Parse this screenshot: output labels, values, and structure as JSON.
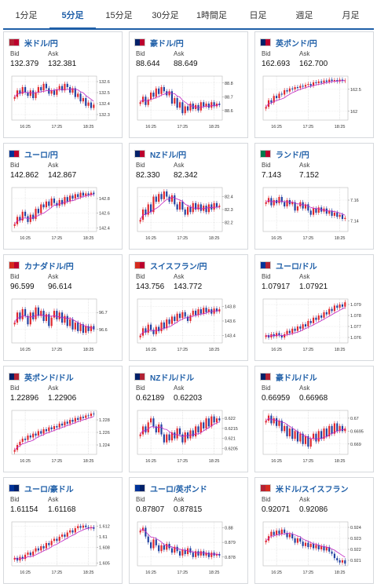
{
  "tabs": [
    {
      "label": "1分足",
      "active": false
    },
    {
      "label": "5分足",
      "active": true
    },
    {
      "label": "15分足",
      "active": false
    },
    {
      "label": "30分足",
      "active": false
    },
    {
      "label": "1時間足",
      "active": false
    },
    {
      "label": "日足",
      "active": false
    },
    {
      "label": "週足",
      "active": false
    },
    {
      "label": "月足",
      "active": false
    }
  ],
  "bid_label": "Bid",
  "ask_label": "Ask",
  "colors": {
    "up": "#e0262b",
    "down": "#1f3fa0",
    "ma": "#c026c4",
    "link": "#1f5fa8"
  },
  "cards": [
    {
      "pair": "米ドル/円",
      "bid": "132.379",
      "ask": "132.381",
      "flag": "us-jp-flag",
      "flag_colors": [
        "#b22234",
        "#bc002d"
      ],
      "chart_data": {
        "type": "candlestick",
        "x_ticks": [
          "16:25",
          "17:25",
          "18:25"
        ],
        "y_ticks": [
          "132.6",
          "132.5",
          "132.4",
          "132.3"
        ],
        "y_min": 132.25,
        "y_max": 132.65,
        "closes": [
          132.46,
          132.52,
          132.49,
          132.55,
          132.5,
          132.47,
          132.52,
          132.45,
          132.5,
          132.55,
          132.52,
          132.58,
          132.54,
          132.49,
          132.52,
          132.48,
          132.53,
          132.56,
          132.52,
          132.58,
          132.55,
          132.5,
          132.54,
          132.46,
          132.49,
          132.42,
          132.45,
          132.38,
          132.41,
          132.36,
          132.39
        ]
      }
    },
    {
      "pair": "豪ドル/円",
      "bid": "88.644",
      "ask": "88.649",
      "flag": "au-jp-flag",
      "flag_colors": [
        "#012169",
        "#bc002d"
      ],
      "chart_data": {
        "type": "candlestick",
        "x_ticks": [
          "16:25",
          "17:25",
          "18:25"
        ],
        "y_ticks": [
          "88.8",
          "88.7",
          "88.6"
        ],
        "y_min": 88.53,
        "y_max": 88.85,
        "closes": [
          88.66,
          88.7,
          88.64,
          88.68,
          88.73,
          88.7,
          88.76,
          88.72,
          88.77,
          88.74,
          88.71,
          88.74,
          88.65,
          88.69,
          88.62,
          88.66,
          88.58,
          88.63,
          88.6,
          88.65,
          88.61,
          88.64,
          88.6,
          88.66,
          88.63,
          88.65,
          88.62,
          88.66,
          88.63,
          88.65,
          88.64
        ]
      }
    },
    {
      "pair": "英ポンド/円",
      "bid": "162.693",
      "ask": "162.700",
      "flag": "gb-jp-flag",
      "flag_colors": [
        "#012169",
        "#bc002d"
      ],
      "chart_data": {
        "type": "candlestick",
        "x_ticks": [
          "16:25",
          "17:25",
          "18:25"
        ],
        "y_ticks": [
          "162.5",
          "162"
        ],
        "y_min": 161.8,
        "y_max": 162.8,
        "closes": [
          162.1,
          162.25,
          162.2,
          162.35,
          162.3,
          162.4,
          162.38,
          162.48,
          162.45,
          162.52,
          162.5,
          162.55,
          162.53,
          162.58,
          162.56,
          162.6,
          162.62,
          162.58,
          162.66,
          162.64,
          162.68,
          162.65,
          162.7,
          162.67,
          162.72,
          162.69,
          162.71,
          162.68,
          162.72,
          162.69,
          162.7
        ]
      }
    },
    {
      "pair": "ユーロ/円",
      "bid": "142.862",
      "ask": "142.867",
      "flag": "eu-jp-flag",
      "flag_colors": [
        "#003399",
        "#bc002d"
      ],
      "chart_data": {
        "type": "candlestick",
        "x_ticks": [
          "16:25",
          "17:25",
          "18:25"
        ],
        "y_ticks": [
          "142.8",
          "142.6",
          "142.4"
        ],
        "y_min": 142.35,
        "y_max": 142.95,
        "closes": [
          142.45,
          142.55,
          142.5,
          142.62,
          142.56,
          142.48,
          142.58,
          142.52,
          142.66,
          142.6,
          142.72,
          142.68,
          142.76,
          142.7,
          142.8,
          142.74,
          142.7,
          142.78,
          142.72,
          142.82,
          142.76,
          142.84,
          142.8,
          142.86,
          142.82,
          142.88,
          142.84,
          142.87,
          142.85,
          142.88,
          142.86
        ]
      }
    },
    {
      "pair": "NZドル/円",
      "bid": "82.330",
      "ask": "82.342",
      "flag": "nz-jp-flag",
      "flag_colors": [
        "#012169",
        "#bc002d"
      ],
      "chart_data": {
        "type": "candlestick",
        "x_ticks": [
          "16:25",
          "17:25",
          "18:25"
        ],
        "y_ticks": [
          "82.4",
          "82.3",
          "82.2"
        ],
        "y_min": 82.13,
        "y_max": 82.47,
        "closes": [
          82.22,
          82.3,
          82.26,
          82.34,
          82.28,
          82.4,
          82.36,
          82.42,
          82.38,
          82.44,
          82.4,
          82.36,
          82.41,
          82.34,
          82.3,
          82.36,
          82.3,
          82.26,
          82.32,
          82.28,
          82.35,
          82.3,
          82.34,
          82.29,
          82.33,
          82.28,
          82.34,
          82.3,
          82.35,
          82.32,
          82.33
        ]
      }
    },
    {
      "pair": "ランド/円",
      "bid": "7.143",
      "ask": "7.152",
      "flag": "za-jp-flag",
      "flag_colors": [
        "#007a4d",
        "#bc002d"
      ],
      "chart_data": {
        "type": "candlestick",
        "x_ticks": [
          "16:25",
          "17:25",
          "18:25"
        ],
        "y_ticks": [
          "7.16",
          "7.14"
        ],
        "y_min": 7.13,
        "y_max": 7.172,
        "closes": [
          7.158,
          7.162,
          7.155,
          7.16,
          7.157,
          7.163,
          7.158,
          7.154,
          7.16,
          7.156,
          7.158,
          7.15,
          7.154,
          7.158,
          7.152,
          7.156,
          7.15,
          7.146,
          7.152,
          7.148,
          7.153,
          7.149,
          7.152,
          7.147,
          7.15,
          7.145,
          7.148,
          7.144,
          7.146,
          7.142,
          7.143
        ]
      }
    },
    {
      "pair": "カナダドル/円",
      "bid": "96.599",
      "ask": "96.614",
      "flag": "ca-jp-flag",
      "flag_colors": [
        "#d52b1e",
        "#bc002d"
      ],
      "chart_data": {
        "type": "candlestick",
        "x_ticks": [
          "16:25",
          "17:25",
          "18:25"
        ],
        "y_ticks": [
          "96.7",
          "96.6"
        ],
        "y_min": 96.52,
        "y_max": 96.78,
        "closes": [
          96.64,
          96.7,
          96.66,
          96.72,
          96.68,
          96.63,
          96.7,
          96.66,
          96.73,
          96.68,
          96.71,
          96.65,
          96.69,
          96.62,
          96.67,
          96.71,
          96.66,
          96.7,
          96.64,
          96.68,
          96.62,
          96.66,
          96.6,
          96.64,
          96.59,
          96.63,
          96.58,
          96.62,
          96.59,
          96.62,
          96.6
        ]
      }
    },
    {
      "pair": "スイスフラン/円",
      "bid": "143.756",
      "ask": "143.772",
      "flag": "ch-jp-flag",
      "flag_colors": [
        "#d52b1e",
        "#bc002d"
      ],
      "chart_data": {
        "type": "candlestick",
        "x_ticks": [
          "16:25",
          "17:25",
          "18:25"
        ],
        "y_ticks": [
          "143.8",
          "143.6",
          "143.4"
        ],
        "y_min": 143.3,
        "y_max": 143.9,
        "closes": [
          143.4,
          143.5,
          143.44,
          143.55,
          143.48,
          143.42,
          143.52,
          143.46,
          143.58,
          143.5,
          143.62,
          143.56,
          143.66,
          143.6,
          143.7,
          143.64,
          143.72,
          143.66,
          143.6,
          143.68,
          143.74,
          143.68,
          143.76,
          143.7,
          143.78,
          143.72,
          143.76,
          143.7,
          143.77,
          143.73,
          143.76
        ]
      }
    },
    {
      "pair": "ユーロ/ドル",
      "bid": "1.07917",
      "ask": "1.07921",
      "flag": "eu-us-flag",
      "flag_colors": [
        "#003399",
        "#b22234"
      ],
      "chart_data": {
        "type": "candlestick",
        "x_ticks": [
          "16:25",
          "17:25",
          "18:25"
        ],
        "y_ticks": [
          "1.079",
          "1.078",
          "1.077",
          "1.076"
        ],
        "y_min": 1.0755,
        "y_max": 1.0795,
        "closes": [
          1.0762,
          1.076,
          1.0763,
          1.0761,
          1.0764,
          1.0762,
          1.076,
          1.0763,
          1.0766,
          1.0764,
          1.0768,
          1.0766,
          1.077,
          1.0768,
          1.0772,
          1.077,
          1.0775,
          1.0773,
          1.0778,
          1.0776,
          1.078,
          1.0778,
          1.0783,
          1.0781,
          1.0786,
          1.0784,
          1.0789,
          1.0787,
          1.079,
          1.0788,
          1.0792
        ]
      }
    },
    {
      "pair": "英ポンド/ドル",
      "bid": "1.22896",
      "ask": "1.22906",
      "flag": "gb-us-flag",
      "flag_colors": [
        "#012169",
        "#b22234"
      ],
      "chart_data": {
        "type": "candlestick",
        "x_ticks": [
          "16:25",
          "17:25",
          "18:25"
        ],
        "y_ticks": [
          "1.228",
          "1.226",
          "1.224"
        ],
        "y_min": 1.2225,
        "y_max": 1.2295,
        "closes": [
          1.2232,
          1.224,
          1.2245,
          1.225,
          1.2248,
          1.2255,
          1.2252,
          1.2258,
          1.2255,
          1.2262,
          1.2258,
          1.2265,
          1.2262,
          1.2268,
          1.2265,
          1.227,
          1.2268,
          1.2274,
          1.2271,
          1.2277,
          1.2274,
          1.228,
          1.2277,
          1.2283,
          1.228,
          1.2285,
          1.2283,
          1.2287,
          1.2286,
          1.229,
          1.2289
        ]
      }
    },
    {
      "pair": "NZドル/ドル",
      "bid": "0.62189",
      "ask": "0.62203",
      "flag": "nz-us-flag",
      "flag_colors": [
        "#012169",
        "#b22234"
      ],
      "chart_data": {
        "type": "candlestick",
        "x_ticks": [
          "16:25",
          "17:25",
          "18:25"
        ],
        "y_ticks": [
          "0.622",
          "0.6215",
          "0.621",
          "0.6205"
        ],
        "y_min": 0.6202,
        "y_max": 0.6224,
        "closes": [
          0.6212,
          0.6216,
          0.6213,
          0.6218,
          0.622,
          0.6216,
          0.6213,
          0.6217,
          0.6212,
          0.6208,
          0.6212,
          0.6209,
          0.6213,
          0.621,
          0.6215,
          0.6212,
          0.6208,
          0.6213,
          0.621,
          0.6214,
          0.6211,
          0.6216,
          0.6213,
          0.6218,
          0.6215,
          0.622,
          0.6216,
          0.6221,
          0.6218,
          0.622,
          0.6219
        ]
      }
    },
    {
      "pair": "豪ドル/ドル",
      "bid": "0.66959",
      "ask": "0.66968",
      "flag": "au-us-flag",
      "flag_colors": [
        "#012169",
        "#b22234"
      ],
      "chart_data": {
        "type": "candlestick",
        "x_ticks": [
          "16:25",
          "17:25",
          "18:25"
        ],
        "y_ticks": [
          "0.67",
          "0.6695",
          "0.669"
        ],
        "y_min": 0.6686,
        "y_max": 0.6703,
        "closes": [
          0.6699,
          0.6701,
          0.6698,
          0.67,
          0.6697,
          0.6699,
          0.6695,
          0.6697,
          0.6693,
          0.6696,
          0.6692,
          0.6695,
          0.6691,
          0.6694,
          0.669,
          0.6693,
          0.6689,
          0.6692,
          0.6694,
          0.6691,
          0.6695,
          0.6692,
          0.6696,
          0.6693,
          0.6697,
          0.6694,
          0.6698,
          0.6695,
          0.6697,
          0.6695,
          0.6696
        ]
      }
    },
    {
      "pair": "ユーロ/豪ドル",
      "bid": "1.61154",
      "ask": "1.61168",
      "flag": "eu-au-flag",
      "flag_colors": [
        "#003399",
        "#012169"
      ],
      "chart_data": {
        "type": "candlestick",
        "x_ticks": [
          "16:25",
          "17:25",
          "18:25"
        ],
        "y_ticks": [
          "1.612",
          "1.61",
          "1.608",
          "1.605"
        ],
        "y_min": 1.6045,
        "y_max": 1.6128,
        "closes": [
          1.606,
          1.6055,
          1.6062,
          1.6058,
          1.6066,
          1.607,
          1.6065,
          1.6072,
          1.6078,
          1.6074,
          1.6082,
          1.6078,
          1.6088,
          1.6084,
          1.6092,
          1.6096,
          1.6092,
          1.61,
          1.6104,
          1.61,
          1.6108,
          1.6112,
          1.6108,
          1.6116,
          1.612,
          1.6117,
          1.6121,
          1.6118,
          1.6116,
          1.6118,
          1.6115
        ]
      }
    },
    {
      "pair": "ユーロ/英ポンド",
      "bid": "0.87807",
      "ask": "0.87815",
      "flag": "eu-gb-flag",
      "flag_colors": [
        "#003399",
        "#012169"
      ],
      "chart_data": {
        "type": "candlestick",
        "x_ticks": [
          "16:25",
          "17:25",
          "18:25"
        ],
        "y_ticks": [
          "0.88",
          "0.879",
          "0.878"
        ],
        "y_min": 0.8774,
        "y_max": 0.8804,
        "closes": [
          0.8798,
          0.88,
          0.8794,
          0.879,
          0.8786,
          0.8792,
          0.8788,
          0.8784,
          0.8788,
          0.8785,
          0.8789,
          0.8786,
          0.8783,
          0.8787,
          0.8784,
          0.8781,
          0.8785,
          0.8782,
          0.8786,
          0.8783,
          0.878,
          0.8784,
          0.8781,
          0.8784,
          0.8781,
          0.8783,
          0.878,
          0.8783,
          0.8781,
          0.8782,
          0.8781
        ]
      }
    },
    {
      "pair": "米ドル/スイスフラン",
      "bid": "0.92071",
      "ask": "0.92086",
      "flag": "us-ch-flag",
      "flag_colors": [
        "#b22234",
        "#d52b1e"
      ],
      "chart_data": {
        "type": "candlestick",
        "x_ticks": [
          "16:25",
          "17:25",
          "18:25"
        ],
        "y_ticks": [
          "0.924",
          "0.923",
          "0.922",
          "0.921"
        ],
        "y_min": 0.9205,
        "y_max": 0.9245,
        "closes": [
          0.9228,
          0.9232,
          0.9236,
          0.9233,
          0.9237,
          0.9234,
          0.9238,
          0.9235,
          0.9231,
          0.9234,
          0.923,
          0.9226,
          0.923,
          0.9227,
          0.9223,
          0.9226,
          0.9222,
          0.9225,
          0.9221,
          0.9224,
          0.922,
          0.9223,
          0.9219,
          0.9222,
          0.9218,
          0.9216,
          0.9212,
          0.921,
          0.9208,
          0.921,
          0.9207
        ]
      }
    }
  ]
}
